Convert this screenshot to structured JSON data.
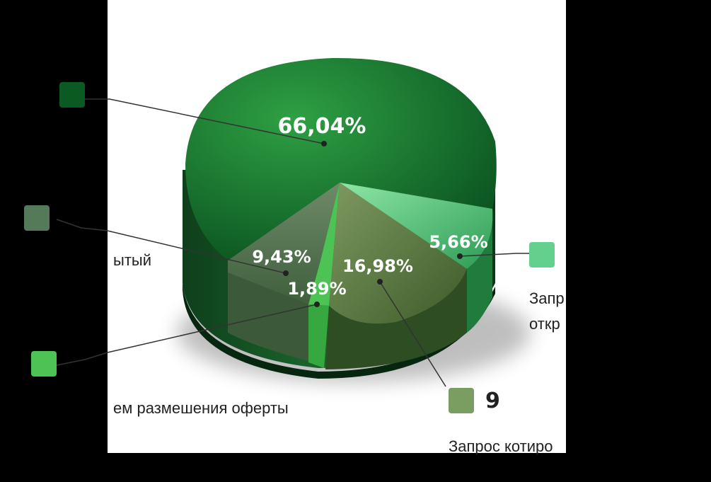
{
  "chart_data": {
    "type": "pie",
    "slices": [
      {
        "name": "",
        "percent_label": "66,04%",
        "percent": 66.04,
        "count": "",
        "color": "#0b5a23"
      },
      {
        "name": "Запрос котировок открытый",
        "percent_label": "5,66%",
        "percent": 5.66,
        "count": "",
        "color": "#63d08e"
      },
      {
        "name": "Запрос котировок закрытый",
        "percent_label": "16,98%",
        "percent": 16.98,
        "count": "9",
        "color": "#7a9e62"
      },
      {
        "name": "путем размешения оферты",
        "percent_label": "1,89%",
        "percent": 1.89,
        "count": "",
        "color": "#4cc354"
      },
      {
        "name": "закрытый",
        "percent_label": "9,43%",
        "percent": 9.43,
        "count": "",
        "color": "#557a5a"
      }
    ]
  },
  "legend": {
    "main": {
      "count": "",
      "label": ""
    },
    "left_second": {
      "count": "",
      "label": "ытый"
    },
    "left_third": {
      "count": "",
      "label": "ем размешения оферты"
    },
    "right_first": {
      "count": "",
      "label_line1": "Запр",
      "label_line2": "откр"
    },
    "right_second": {
      "count": "9",
      "label_line1": "Запрос котиро",
      "label_line2": ""
    }
  }
}
